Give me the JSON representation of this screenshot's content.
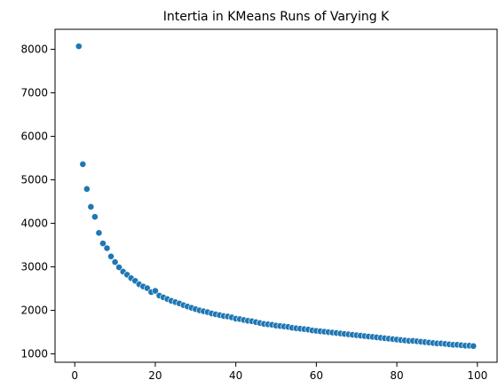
{
  "chart_data": {
    "type": "scatter",
    "title": "Intertia in KMeans Runs of Varying K",
    "xlabel": "",
    "ylabel": "",
    "xlim": [
      -4.9,
      104.9
    ],
    "ylim": [
      808,
      8460
    ],
    "x_ticks": [
      0,
      20,
      40,
      60,
      80,
      100
    ],
    "y_ticks": [
      1000,
      2000,
      3000,
      4000,
      5000,
      6000,
      7000,
      8000
    ],
    "grid": false,
    "legend": "none",
    "marker_color": "#1f77b4",
    "series": [
      {
        "x": [
          1,
          2,
          3,
          4,
          5,
          6,
          7,
          8,
          9,
          10,
          11,
          12,
          13,
          14,
          15,
          16,
          17,
          18,
          19,
          20,
          21,
          22,
          23,
          24,
          25,
          26,
          27,
          28,
          29,
          30,
          31,
          32,
          33,
          34,
          35,
          36,
          37,
          38,
          39,
          40,
          41,
          42,
          43,
          44,
          45,
          46,
          47,
          48,
          49,
          50,
          51,
          52,
          53,
          54,
          55,
          56,
          57,
          58,
          59,
          60,
          61,
          62,
          63,
          64,
          65,
          66,
          67,
          68,
          69,
          70,
          71,
          72,
          73,
          74,
          75,
          76,
          77,
          78,
          79,
          80,
          81,
          82,
          83,
          84,
          85,
          86,
          87,
          88,
          89,
          90,
          91,
          92,
          93,
          94,
          95,
          96,
          97,
          98,
          99
        ],
        "values": [
          8070,
          5360,
          4790,
          4380,
          4150,
          3780,
          3540,
          3430,
          3240,
          3110,
          2990,
          2890,
          2820,
          2740,
          2680,
          2600,
          2550,
          2510,
          2420,
          2450,
          2340,
          2300,
          2260,
          2220,
          2190,
          2160,
          2120,
          2090,
          2060,
          2030,
          2000,
          1980,
          1960,
          1930,
          1910,
          1890,
          1870,
          1860,
          1840,
          1810,
          1800,
          1780,
          1760,
          1750,
          1730,
          1710,
          1690,
          1680,
          1670,
          1650,
          1640,
          1630,
          1620,
          1600,
          1590,
          1580,
          1570,
          1560,
          1540,
          1530,
          1520,
          1510,
          1500,
          1490,
          1480,
          1470,
          1460,
          1450,
          1440,
          1430,
          1420,
          1410,
          1400,
          1390,
          1380,
          1370,
          1360,
          1350,
          1340,
          1330,
          1320,
          1310,
          1300,
          1300,
          1290,
          1280,
          1270,
          1260,
          1250,
          1240,
          1240,
          1230,
          1220,
          1210,
          1210,
          1200,
          1190,
          1190,
          1180
        ]
      }
    ]
  }
}
